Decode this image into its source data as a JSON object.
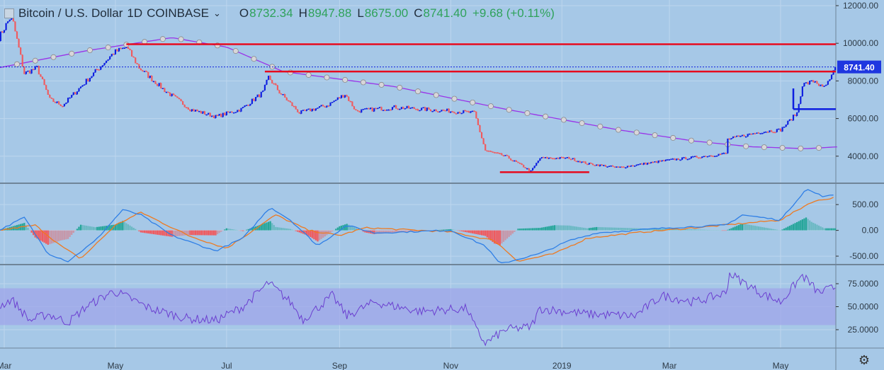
{
  "legend": {
    "symbol": "Bitcoin / U.S. Dollar",
    "interval": "1D",
    "exchange": "COINBASE",
    "open_label": "O",
    "open": "8732.34",
    "high_label": "H",
    "high": "8947.88",
    "low_label": "L",
    "low": "8675.00",
    "close_label": "C",
    "close": "8741.40",
    "change": "+9.68 (+0.11%)"
  },
  "icons": {
    "settings": "gear-icon",
    "menu": "chevron-down-icon",
    "symbol": "square-icon"
  },
  "colors": {
    "background": "#a6c8e7",
    "bull": "#0d1ee0",
    "bear": "#f05a5e",
    "horizontal_lines": "#e60a1e",
    "support_blue": "#0d1ee0",
    "ma_line": "#9a34e8",
    "macd_line": "#2f7fe6",
    "signal_line": "#ee7a21",
    "hist_pos": "#26a69a",
    "hist_neg": "#f05a5e",
    "rsi_line": "#6b3fd0",
    "rsi_band": "#9fa6ea",
    "price_label_bg": "#1e36e0"
  },
  "time_axis": {
    "labels": [
      "Mar",
      "May",
      "Jul",
      "Sep",
      "Nov",
      "2019",
      "Mar",
      "May"
    ]
  },
  "chart_data": [
    {
      "type": "candlestick",
      "panel": "price",
      "ylim": [
        2600,
        12300
      ],
      "y_ticks": [
        "12000.00",
        "10000.00",
        "8000.00",
        "6000.00",
        "4000.00"
      ],
      "y_tick_values": [
        12000,
        10000,
        8000,
        6000,
        4000
      ],
      "last_price_label": "8741.40",
      "close_path": [
        [
          "2018-02-26",
          10300
        ],
        [
          "2018-03-05",
          11500
        ],
        [
          "2018-03-12",
          8400
        ],
        [
          "2018-03-19",
          8700
        ],
        [
          "2018-03-26",
          7000
        ],
        [
          "2018-04-02",
          6700
        ],
        [
          "2018-04-16",
          8100
        ],
        [
          "2018-04-30",
          9500
        ],
        [
          "2018-05-07",
          9800
        ],
        [
          "2018-05-14",
          8700
        ],
        [
          "2018-05-28",
          7500
        ],
        [
          "2018-06-11",
          6500
        ],
        [
          "2018-06-25",
          6100
        ],
        [
          "2018-07-09",
          6500
        ],
        [
          "2018-07-21",
          7400
        ],
        [
          "2018-07-24",
          8200
        ],
        [
          "2018-07-30",
          7400
        ],
        [
          "2018-08-10",
          6300
        ],
        [
          "2018-08-25",
          6700
        ],
        [
          "2018-09-04",
          7300
        ],
        [
          "2018-09-10",
          6400
        ],
        [
          "2018-10-01",
          6600
        ],
        [
          "2018-11-01",
          6400
        ],
        [
          "2018-11-14",
          6300
        ],
        [
          "2018-11-20",
          4300
        ],
        [
          "2018-12-01",
          4000
        ],
        [
          "2018-12-10",
          3500
        ],
        [
          "2018-12-15",
          3200
        ],
        [
          "2018-12-20",
          3900
        ],
        [
          "2019-01-05",
          3900
        ],
        [
          "2019-01-15",
          3600
        ],
        [
          "2019-02-01",
          3400
        ],
        [
          "2019-02-15",
          3600
        ],
        [
          "2019-03-01",
          3800
        ],
        [
          "2019-03-20",
          4000
        ],
        [
          "2019-04-01",
          4150
        ],
        [
          "2019-04-02",
          4900
        ],
        [
          "2019-04-20",
          5300
        ],
        [
          "2019-05-01",
          5400
        ],
        [
          "2019-05-10",
          6300
        ],
        [
          "2019-05-13",
          7800
        ],
        [
          "2019-05-20",
          8000
        ],
        [
          "2019-05-24",
          7600
        ],
        [
          "2019-05-28",
          8000
        ],
        [
          "2019-05-31",
          8741.4
        ]
      ],
      "moving_average": [
        [
          "2018-02-26",
          8700
        ],
        [
          "2018-04-15",
          9600
        ],
        [
          "2018-06-01",
          10300
        ],
        [
          "2018-07-01",
          9800
        ],
        [
          "2018-08-01",
          8500
        ],
        [
          "2018-10-01",
          7700
        ],
        [
          "2018-12-01",
          6500
        ],
        [
          "2019-02-01",
          5400
        ],
        [
          "2019-03-15",
          4800
        ],
        [
          "2019-04-15",
          4500
        ],
        [
          "2019-05-15",
          4400
        ],
        [
          "2019-06-02",
          4500
        ]
      ],
      "horizontal_lines": [
        {
          "price": 9950,
          "from": "2018-05-07",
          "to": "2019-06-04",
          "color": "red"
        },
        {
          "price": 8500,
          "from": "2018-07-22",
          "to": "2019-06-04",
          "color": "red"
        },
        {
          "price": 3150,
          "from": "2018-11-28",
          "to": "2019-01-16",
          "color": "red"
        },
        {
          "price": 6500,
          "from": "2019-05-08",
          "to": "2019-06-04",
          "color": "blue"
        }
      ]
    },
    {
      "type": "macd",
      "panel": "macd",
      "ylim": [
        -650,
        900
      ],
      "y_ticks": [
        "500.00",
        "0.00",
        "-500.00"
      ],
      "y_tick_values": [
        500,
        0,
        -500
      ],
      "macd": [
        [
          "2018-02-26",
          0
        ],
        [
          "2018-03-12",
          250
        ],
        [
          "2018-03-25",
          -450
        ],
        [
          "2018-04-05",
          -600
        ],
        [
          "2018-04-20",
          -200
        ],
        [
          "2018-05-05",
          400
        ],
        [
          "2018-05-15",
          300
        ],
        [
          "2018-06-01",
          -100
        ],
        [
          "2018-06-25",
          -400
        ],
        [
          "2018-07-10",
          -150
        ],
        [
          "2018-07-25",
          450
        ],
        [
          "2018-08-05",
          200
        ],
        [
          "2018-08-20",
          -300
        ],
        [
          "2018-09-05",
          100
        ],
        [
          "2018-09-20",
          -50
        ],
        [
          "2018-11-01",
          0
        ],
        [
          "2018-11-20",
          -300
        ],
        [
          "2018-11-28",
          -650
        ],
        [
          "2018-12-20",
          -450
        ],
        [
          "2019-01-05",
          -200
        ],
        [
          "2019-01-20",
          -50
        ],
        [
          "2019-03-01",
          50
        ],
        [
          "2019-04-01",
          100
        ],
        [
          "2019-04-10",
          300
        ],
        [
          "2019-05-01",
          200
        ],
        [
          "2019-05-15",
          800
        ],
        [
          "2019-05-25",
          650
        ],
        [
          "2019-06-01",
          700
        ]
      ],
      "signal": [
        [
          "2018-02-26",
          0
        ],
        [
          "2018-03-18",
          100
        ],
        [
          "2018-04-01",
          -300
        ],
        [
          "2018-04-12",
          -550
        ],
        [
          "2018-05-01",
          100
        ],
        [
          "2018-05-15",
          350
        ],
        [
          "2018-06-10",
          -100
        ],
        [
          "2018-07-01",
          -350
        ],
        [
          "2018-07-28",
          300
        ],
        [
          "2018-08-15",
          0
        ],
        [
          "2018-09-01",
          -100
        ],
        [
          "2018-09-15",
          50
        ],
        [
          "2018-11-01",
          -30
        ],
        [
          "2018-11-25",
          -200
        ],
        [
          "2018-12-08",
          -600
        ],
        [
          "2018-12-28",
          -450
        ],
        [
          "2019-01-15",
          -150
        ],
        [
          "2019-02-15",
          -30
        ],
        [
          "2019-03-15",
          50
        ],
        [
          "2019-04-15",
          150
        ],
        [
          "2019-05-01",
          200
        ],
        [
          "2019-05-18",
          550
        ],
        [
          "2019-06-01",
          650
        ]
      ]
    },
    {
      "type": "rsi",
      "panel": "rsi",
      "ylim": [
        5,
        95
      ],
      "band": [
        30,
        70
      ],
      "y_ticks": [
        "75.0000",
        "50.0000",
        "25.0000"
      ],
      "y_tick_values": [
        75,
        50,
        25
      ],
      "rsi": [
        [
          "2018-02-26",
          50
        ],
        [
          "2018-03-05",
          58
        ],
        [
          "2018-03-15",
          35
        ],
        [
          "2018-03-25",
          42
        ],
        [
          "2018-04-05",
          33
        ],
        [
          "2018-04-15",
          50
        ],
        [
          "2018-04-30",
          67
        ],
        [
          "2018-05-08",
          60
        ],
        [
          "2018-05-20",
          48
        ],
        [
          "2018-06-10",
          37
        ],
        [
          "2018-06-25",
          35
        ],
        [
          "2018-07-10",
          50
        ],
        [
          "2018-07-24",
          76
        ],
        [
          "2018-08-05",
          55
        ],
        [
          "2018-08-12",
          36
        ],
        [
          "2018-08-28",
          62
        ],
        [
          "2018-09-05",
          40
        ],
        [
          "2018-09-20",
          55
        ],
        [
          "2018-10-15",
          45
        ],
        [
          "2018-11-10",
          48
        ],
        [
          "2018-11-15",
          25
        ],
        [
          "2018-11-20",
          10
        ],
        [
          "2018-12-01",
          25
        ],
        [
          "2018-12-15",
          28
        ],
        [
          "2018-12-20",
          48
        ],
        [
          "2019-01-15",
          42
        ],
        [
          "2019-02-10",
          40
        ],
        [
          "2019-02-25",
          62
        ],
        [
          "2019-03-15",
          55
        ],
        [
          "2019-04-01",
          65
        ],
        [
          "2019-04-03",
          86
        ],
        [
          "2019-04-20",
          65
        ],
        [
          "2019-05-01",
          55
        ],
        [
          "2019-05-13",
          84
        ],
        [
          "2019-05-22",
          65
        ],
        [
          "2019-06-01",
          72
        ]
      ]
    }
  ]
}
